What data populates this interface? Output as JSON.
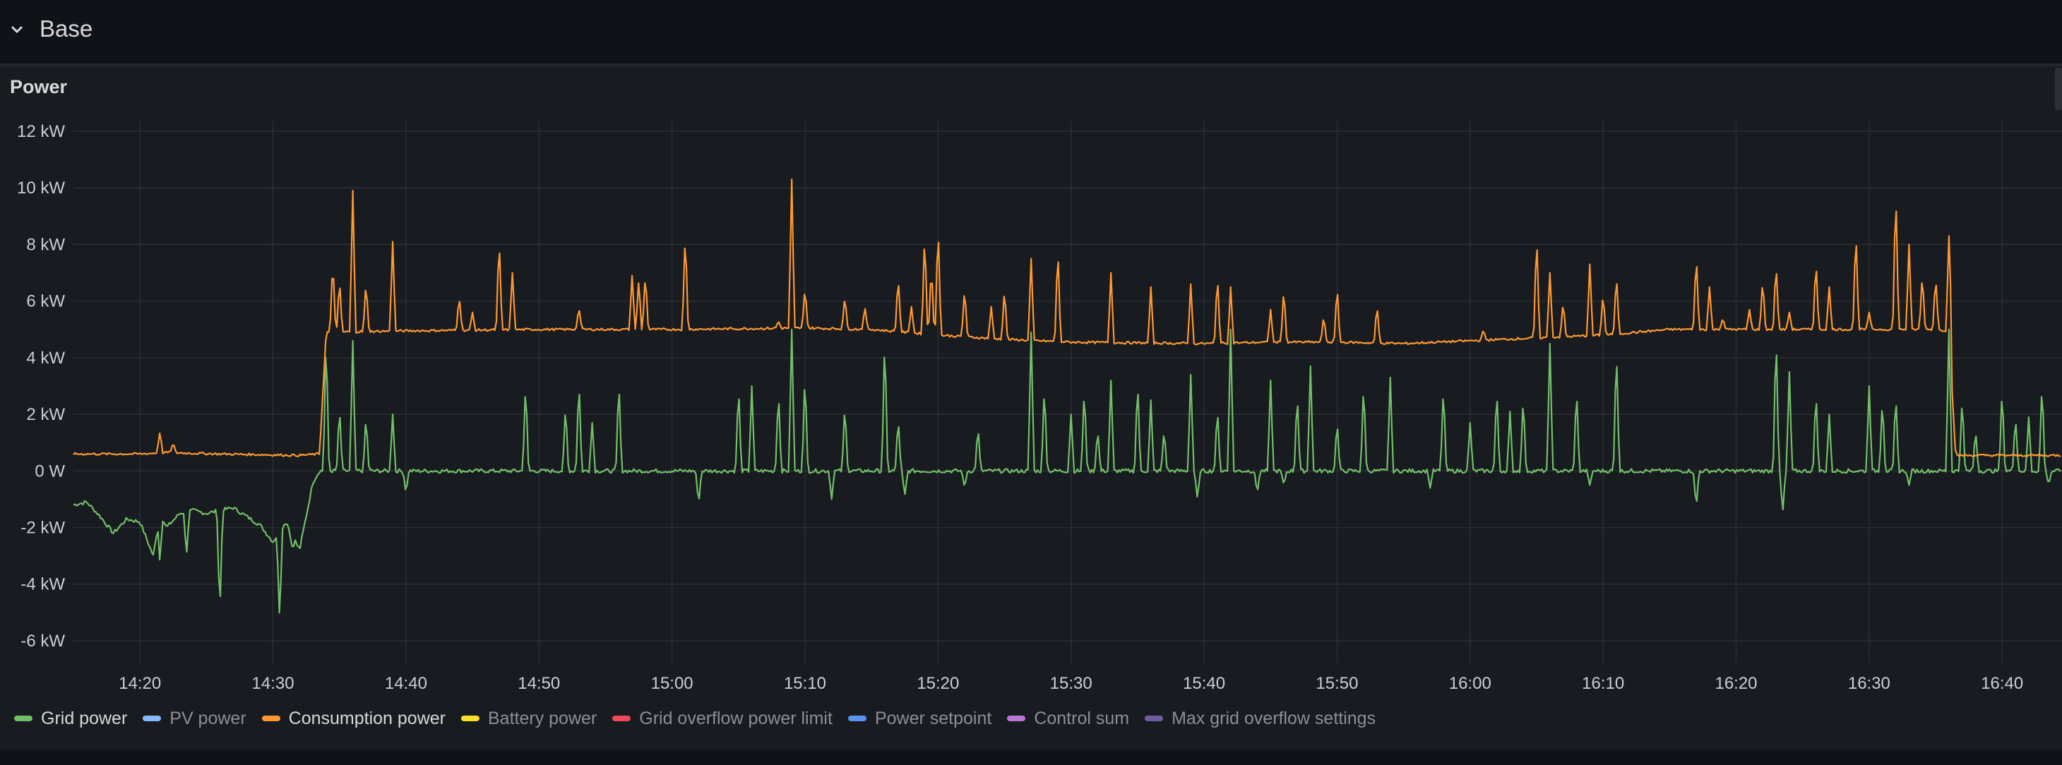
{
  "row": {
    "title": "Base",
    "chevron_icon": "chevron-down-icon"
  },
  "panel": {
    "title": "Power"
  },
  "colors": {
    "grid": "#2b2e34",
    "tick_text": "#ccccdc",
    "series_grid_power": "#73bf69",
    "series_pv_power": "#8ab8ff",
    "series_consumption_power": "#ff9830",
    "series_battery_power": "#fade2a",
    "series_grid_overflow_limit": "#f2495c",
    "series_power_setpoint": "#5794f2",
    "series_control_sum": "#b877d9",
    "series_max_grid_overflow": "#705da0"
  },
  "chart_data": {
    "type": "line",
    "x_start_minute": 855,
    "x_end_minute": 1004.5,
    "x_ticks": [
      "14:20",
      "14:30",
      "14:40",
      "14:50",
      "15:00",
      "15:10",
      "15:20",
      "15:30",
      "15:40",
      "15:50",
      "16:00",
      "16:10",
      "16:20",
      "16:30",
      "16:40"
    ],
    "y_ticks": [
      "12 kW",
      "10 kW",
      "8 kW",
      "6 kW",
      "4 kW",
      "2 kW",
      "0 W",
      "-2 kW",
      "-4 kW",
      "-6 kW"
    ],
    "ylim": [
      -6.5,
      12
    ],
    "legend_position": "bottom-left",
    "grid": true,
    "series": [
      {
        "name": "Grid power",
        "color": "#73bf69",
        "active": true,
        "baseline": [
          [
            855,
            -1.2
          ],
          [
            856,
            -1.1
          ],
          [
            857,
            -1.6
          ],
          [
            858,
            -2.2
          ],
          [
            859,
            -1.7
          ],
          [
            860,
            -1.8
          ],
          [
            861,
            -3.0
          ],
          [
            861.5,
            -1.5
          ],
          [
            862,
            -2.0
          ],
          [
            863,
            -1.5
          ],
          [
            864,
            -1.4
          ],
          [
            865,
            -1.5
          ],
          [
            866,
            -1.4
          ],
          [
            867,
            -1.3
          ],
          [
            868,
            -1.6
          ],
          [
            869,
            -1.9
          ],
          [
            870,
            -2.5
          ],
          [
            871,
            -1.8
          ],
          [
            872,
            -2.8
          ],
          [
            873,
            -0.4
          ],
          [
            873.5,
            0.0
          ],
          [
            1004.5,
            0.0
          ]
        ],
        "dips": [
          [
            861.5,
            -3.3
          ],
          [
            863.5,
            -3.0
          ],
          [
            866,
            -5.1
          ],
          [
            870.5,
            -5.3
          ],
          [
            871.5,
            -2.8
          ]
        ],
        "spikes": [
          [
            861.5,
            1.2
          ],
          [
            874,
            4.9
          ],
          [
            875,
            2.3
          ],
          [
            876,
            4.6
          ],
          [
            877,
            2.0
          ],
          [
            879,
            2.0
          ],
          [
            880,
            3.0
          ],
          [
            889,
            3.2
          ],
          [
            892,
            2.4
          ],
          [
            893,
            3.3
          ],
          [
            894,
            1.7
          ],
          [
            896,
            3.3
          ],
          [
            905,
            3.1
          ],
          [
            906,
            3.0
          ],
          [
            908,
            2.9
          ],
          [
            909,
            5.0
          ],
          [
            910,
            3.5
          ],
          [
            913,
            2.4
          ],
          [
            916,
            4.9
          ],
          [
            917,
            1.9
          ],
          [
            923,
            1.6
          ],
          [
            927,
            4.9
          ],
          [
            928,
            3.1
          ],
          [
            930,
            2.0
          ],
          [
            931,
            3.0
          ],
          [
            932,
            1.5
          ],
          [
            933,
            3.2
          ],
          [
            935,
            3.3
          ],
          [
            936,
            2.5
          ],
          [
            937,
            1.5
          ],
          [
            939,
            3.4
          ],
          [
            941,
            2.3
          ],
          [
            942,
            5.0
          ],
          [
            944,
            2.1
          ],
          [
            945,
            3.2
          ],
          [
            947,
            2.8
          ],
          [
            948,
            3.7
          ],
          [
            950,
            1.8
          ],
          [
            952,
            3.2
          ],
          [
            954,
            3.3
          ],
          [
            958,
            3.1
          ],
          [
            960,
            1.7
          ],
          [
            962,
            3.0
          ],
          [
            963,
            2.1
          ],
          [
            964,
            2.7
          ],
          [
            966,
            4.5
          ],
          [
            968,
            3.0
          ],
          [
            971,
            4.5
          ],
          [
            983,
            5.0
          ],
          [
            984,
            3.5
          ],
          [
            986,
            2.9
          ],
          [
            987,
            2.0
          ],
          [
            990,
            3.0
          ],
          [
            991,
            2.6
          ],
          [
            992,
            2.8
          ],
          [
            993,
            3.2
          ],
          [
            996,
            5.0
          ],
          [
            997,
            2.7
          ],
          [
            998,
            1.5
          ],
          [
            1000,
            3.0
          ],
          [
            1001,
            2.0
          ],
          [
            1002,
            1.9
          ],
          [
            1003,
            3.2
          ]
        ],
        "neg_spikes": [
          [
            880,
            -0.8
          ],
          [
            902,
            -1.2
          ],
          [
            912,
            -1.0
          ],
          [
            917.5,
            -0.9
          ],
          [
            922,
            -0.6
          ],
          [
            939.5,
            -1.0
          ],
          [
            944,
            -0.8
          ],
          [
            946,
            -0.5
          ],
          [
            957,
            -0.6
          ],
          [
            969,
            -0.5
          ],
          [
            977,
            -1.3
          ],
          [
            983.5,
            -1.5
          ],
          [
            993,
            -0.5
          ],
          [
            1003.5,
            -0.5
          ]
        ]
      },
      {
        "name": "PV power",
        "color": "#8ab8ff",
        "active": false
      },
      {
        "name": "Consumption power",
        "color": "#ff9830",
        "active": true,
        "baseline": [
          [
            855,
            0.6
          ],
          [
            860,
            0.6
          ],
          [
            862,
            0.65
          ],
          [
            866,
            0.6
          ],
          [
            872,
            0.55
          ],
          [
            873.5,
            0.6
          ],
          [
            874,
            4.9
          ],
          [
            880,
            4.95
          ],
          [
            890,
            5.0
          ],
          [
            900,
            5.0
          ],
          [
            910,
            5.05
          ],
          [
            915,
            5.0
          ],
          [
            920,
            4.8
          ],
          [
            925,
            4.65
          ],
          [
            930,
            4.55
          ],
          [
            940,
            4.5
          ],
          [
            945,
            4.55
          ],
          [
            950,
            4.55
          ],
          [
            955,
            4.5
          ],
          [
            960,
            4.6
          ],
          [
            965,
            4.7
          ],
          [
            970,
            4.8
          ],
          [
            975,
            5.0
          ],
          [
            980,
            5.0
          ],
          [
            990,
            5.0
          ],
          [
            995,
            5.0
          ],
          [
            996,
            4.95
          ],
          [
            996.5,
            0.55
          ],
          [
            1004.5,
            0.55
          ]
        ],
        "spikes": [
          [
            861.5,
            1.4
          ],
          [
            862.5,
            1.0
          ],
          [
            874.5,
            7.5
          ],
          [
            875,
            6.8
          ],
          [
            876,
            9.9
          ],
          [
            877,
            6.7
          ],
          [
            879,
            8.1
          ],
          [
            884,
            6.2
          ],
          [
            885,
            5.6
          ],
          [
            887,
            8.3
          ],
          [
            888,
            7.0
          ],
          [
            893,
            5.8
          ],
          [
            897,
            6.9
          ],
          [
            897.5,
            6.8
          ],
          [
            898,
            7.0
          ],
          [
            901,
            8.5
          ],
          [
            908,
            5.3
          ],
          [
            909,
            10.3
          ],
          [
            910,
            6.5
          ],
          [
            913,
            6.2
          ],
          [
            914.5,
            5.8
          ],
          [
            917,
            6.9
          ],
          [
            918,
            5.8
          ],
          [
            919,
            8.5
          ],
          [
            919.5,
            7.3
          ],
          [
            920,
            8.8
          ],
          [
            922,
            6.5
          ],
          [
            924,
            5.8
          ],
          [
            925,
            6.5
          ],
          [
            927,
            7.5
          ],
          [
            929,
            8.0
          ],
          [
            933,
            7.0
          ],
          [
            936,
            6.5
          ],
          [
            939,
            6.6
          ],
          [
            941,
            7.0
          ],
          [
            942,
            6.5
          ],
          [
            945,
            5.7
          ],
          [
            946,
            6.5
          ],
          [
            949,
            5.5
          ],
          [
            950,
            6.6
          ],
          [
            953,
            5.9
          ],
          [
            961,
            5.0
          ],
          [
            965,
            8.5
          ],
          [
            966,
            7.0
          ],
          [
            967,
            6.0
          ],
          [
            969,
            7.3
          ],
          [
            970,
            6.3
          ],
          [
            971,
            7.0
          ],
          [
            977,
            7.7
          ],
          [
            978,
            6.5
          ],
          [
            979,
            5.4
          ],
          [
            981,
            5.7
          ],
          [
            982,
            6.8
          ],
          [
            983,
            7.4
          ],
          [
            984,
            5.6
          ],
          [
            986,
            7.5
          ],
          [
            987,
            6.5
          ],
          [
            989,
            8.6
          ],
          [
            990,
            5.6
          ],
          [
            992,
            10.1
          ],
          [
            993,
            8.0
          ],
          [
            994,
            7.0
          ],
          [
            995,
            6.9
          ],
          [
            996,
            8.3
          ]
        ]
      },
      {
        "name": "Battery power",
        "color": "#fade2a",
        "active": false
      },
      {
        "name": "Grid overflow power limit",
        "color": "#f2495c",
        "active": false
      },
      {
        "name": "Power setpoint",
        "color": "#5794f2",
        "active": false
      },
      {
        "name": "Control sum",
        "color": "#b877d9",
        "active": false
      },
      {
        "name": "Max grid overflow settings",
        "color": "#705da0",
        "active": false
      }
    ]
  }
}
